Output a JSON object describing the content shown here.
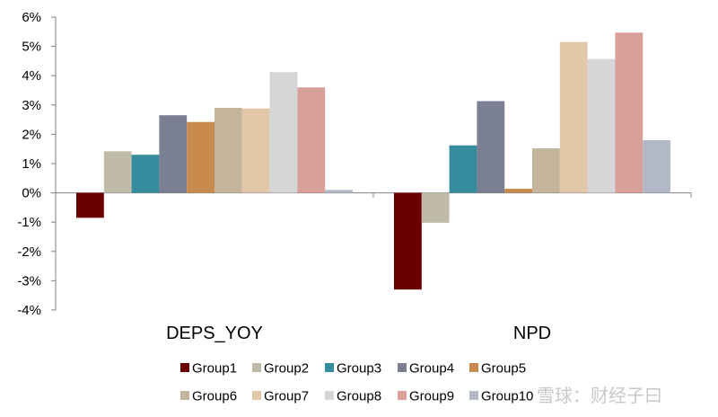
{
  "chart_data": {
    "type": "bar",
    "title": "",
    "xlabel": "",
    "ylabel": "",
    "categories": [
      "DEPS_YOY",
      "NPD"
    ],
    "ylim": [
      -4,
      6
    ],
    "yticks": [
      -4,
      -3,
      -2,
      -1,
      0,
      1,
      2,
      3,
      4,
      5,
      6
    ],
    "ytick_labels": [
      "-4%",
      "-3%",
      "-2%",
      "-1%",
      "0%",
      "1%",
      "2%",
      "3%",
      "4%",
      "5%",
      "6%"
    ],
    "y_unit": "%",
    "grid": false,
    "legend_position": "bottom",
    "series": [
      {
        "name": "Group1",
        "color": "#6b0000",
        "values": [
          -0.85,
          -3.3
        ]
      },
      {
        "name": "Group2",
        "color": "#bfbba8",
        "values": [
          1.42,
          -1.02
        ]
      },
      {
        "name": "Group3",
        "color": "#348c9c",
        "values": [
          1.3,
          1.62
        ]
      },
      {
        "name": "Group4",
        "color": "#7b7f93",
        "values": [
          2.65,
          3.13
        ]
      },
      {
        "name": "Group5",
        "color": "#c98a4d",
        "values": [
          2.42,
          0.14
        ]
      },
      {
        "name": "Group6",
        "color": "#c4b49c",
        "values": [
          2.9,
          1.52
        ]
      },
      {
        "name": "Group7",
        "color": "#e3c7a9",
        "values": [
          2.88,
          5.15
        ]
      },
      {
        "name": "Group8",
        "color": "#d6d6d8",
        "values": [
          4.12,
          4.57
        ]
      },
      {
        "name": "Group9",
        "color": "#d8a098",
        "values": [
          3.6,
          5.47
        ]
      },
      {
        "name": "Group10",
        "color": "#b3b8c7",
        "values": [
          0.1,
          1.8
        ]
      }
    ]
  },
  "watermark": {
    "text": "雪球：财经子曰"
  }
}
